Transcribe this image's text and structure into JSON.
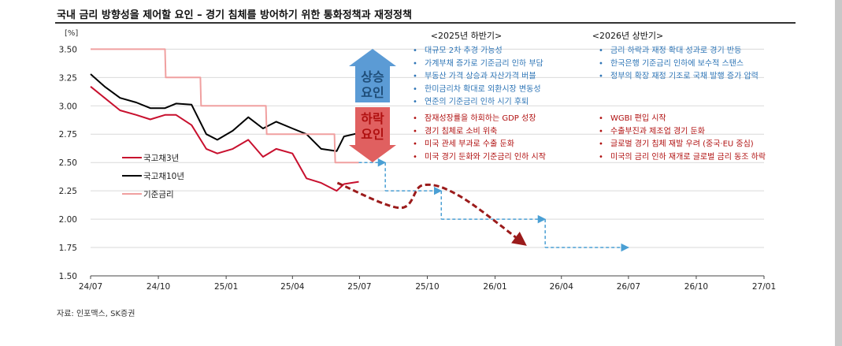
{
  "title": "국내 금리 방향성을 제어할 요인 – 경기 침체를 방어하기 위한 통화정책과 재정정책",
  "source": "자료: 인포맥스, SK증권",
  "unit": "[%]",
  "colors": {
    "kr3y": "#c8102e",
    "kr10y": "#000000",
    "base_rate": "#f0a0a0",
    "forecast_arrow": "#9b1b1b",
    "projection": "#4a9fd4",
    "up_arrow": "#5b9bd5",
    "down_arrow": "#e06060",
    "up_text": "#1f4e79",
    "down_text": "#b01010"
  },
  "chart_data": {
    "type": "line",
    "x_ticks": [
      "24/07",
      "24/10",
      "25/01",
      "25/04",
      "25/07",
      "25/10",
      "26/01",
      "26/04",
      "26/07",
      "26/10",
      "27/01"
    ],
    "y_ticks": [
      "1.50",
      "1.75",
      "2.00",
      "2.25",
      "2.50",
      "2.75",
      "3.00",
      "3.25",
      "3.50"
    ],
    "ylim": [
      1.5,
      3.6
    ],
    "grid": true,
    "legend_position": "left-middle",
    "series": [
      {
        "name": "국고채3년",
        "key": "kr3y",
        "x": [
          "2024-07-01",
          "2024-07-20",
          "2024-08-10",
          "2024-09-01",
          "2024-09-20",
          "2024-10-10",
          "2024-10-25",
          "2024-11-15",
          "2024-12-05",
          "2024-12-20",
          "2025-01-10",
          "2025-01-31",
          "2025-02-20",
          "2025-03-10",
          "2025-04-01",
          "2025-04-20",
          "2025-05-10",
          "2025-05-31",
          "2025-06-10",
          "2025-06-30"
        ],
        "y": [
          3.17,
          3.07,
          2.96,
          2.92,
          2.88,
          2.92,
          2.92,
          2.83,
          2.62,
          2.58,
          2.62,
          2.7,
          2.55,
          2.62,
          2.58,
          2.36,
          2.32,
          2.25,
          2.31,
          2.33
        ]
      },
      {
        "name": "국고채10년",
        "key": "kr10y",
        "x": [
          "2024-07-01",
          "2024-07-20",
          "2024-08-10",
          "2024-09-01",
          "2024-09-20",
          "2024-10-10",
          "2024-10-25",
          "2024-11-15",
          "2024-12-05",
          "2024-12-20",
          "2025-01-10",
          "2025-01-31",
          "2025-02-20",
          "2025-03-10",
          "2025-04-01",
          "2025-04-20",
          "2025-05-10",
          "2025-05-31",
          "2025-06-10",
          "2025-06-30",
          "2025-07-10"
        ],
        "y": [
          3.28,
          3.17,
          3.07,
          3.03,
          2.98,
          2.98,
          3.02,
          3.01,
          2.75,
          2.7,
          2.78,
          2.9,
          2.8,
          2.86,
          2.8,
          2.75,
          2.62,
          2.6,
          2.73,
          2.76,
          2.8
        ]
      },
      {
        "name": "기준금리",
        "key": "base_rate",
        "x": [
          "2024-07-01",
          "2024-10-10",
          "2024-10-11",
          "2024-11-27",
          "2024-11-28",
          "2025-02-24",
          "2025-02-25",
          "2025-05-28",
          "2025-05-29",
          "2025-06-30"
        ],
        "y": [
          3.5,
          3.5,
          3.25,
          3.25,
          3.0,
          3.0,
          2.75,
          2.75,
          2.5,
          2.5
        ]
      }
    ],
    "projection_path": {
      "x": [
        "2025-06-30",
        "2025-08-05",
        "2025-08-05",
        "2025-10-20",
        "2025-10-20",
        "2026-03-10",
        "2026-03-10",
        "2026-07-01"
      ],
      "y": [
        2.5,
        2.5,
        2.25,
        2.25,
        2.0,
        2.0,
        1.75,
        1.75
      ]
    },
    "forecast_curve": {
      "x": [
        "2025-06-01",
        "2025-08-25",
        "2025-09-25",
        "2025-11-15",
        "2026-02-10"
      ],
      "y": [
        2.32,
        2.1,
        2.3,
        2.2,
        1.78
      ]
    }
  },
  "up_factor_label": [
    "상승",
    "요인"
  ],
  "down_factor_label": [
    "하락",
    "요인"
  ],
  "periods": {
    "h2_2025": {
      "header": "<2025년 하반기>",
      "up": [
        "대규모 2차 추경 가능성",
        "가계부채 증가로 기준금리 인하 부담",
        "부동산 가격 상승과 자산가격 버블",
        "한미금리차 확대로 외환시장 변동성",
        "연준의 기준금리 인하 시기 후퇴"
      ],
      "down": [
        "잠재성장률을 하회하는 GDP 성장",
        "경기 침체로 소비 위축",
        "미국 관세 부과로 수출 둔화",
        "미국 경기 둔화와 기준금리 인하 시작"
      ]
    },
    "h1_2026": {
      "header": "<2026년 상반기>",
      "up": [
        "금리 하락과 재정 확대 성과로 경기 반등",
        "한국은행 기준금리 인하에 보수적 스탠스",
        "정부의 확장 재정 기조로 국채 발행 증가 압력"
      ],
      "down": [
        "WGBI 편입 시작",
        "수출부진과 제조업 경기 둔화",
        "글로벌 경기 침체 재발 우려 (중국·EU 중심)",
        "미국의 금리 인하 재개로 글로벌 금리 동조 하락"
      ]
    }
  }
}
